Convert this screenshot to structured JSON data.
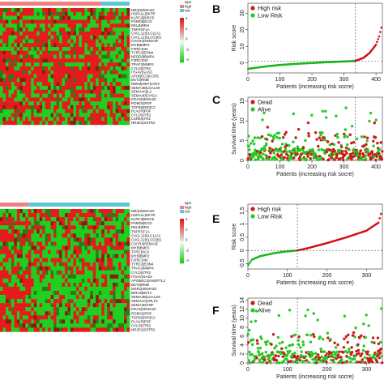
{
  "colors": {
    "high_expr": "#e41a1c",
    "low_expr": "#1fcf1f",
    "mid_expr": "#111111",
    "high_group": "#f08080",
    "low_group": "#5bc8d8",
    "dead": "#cc1a1a",
    "alive": "#22cc22",
    "red_line": "#d01010",
    "green_line": "#17b817"
  },
  "heatmap_top": {
    "genes": [
      "MR1|SEMA4G",
      "HSPA1L|DKTR",
      "KLRC2|BIRC5",
      "PSMD5|ECD",
      "RELB|RRH",
      "TNFRSF1A",
      "CXCL12|SLC11A1",
      "CXCL12|SLCO2B1",
      "CXCR4|SEMA3F",
      "MYB|BMP2",
      "F2R|CD40",
      "TYRC3|EDN4",
      "NEDD8|BMP4",
      "F2R|CD40",
      "TRAF2|MMP4",
      "CYLD|STR2",
      "ITGAV|GAS3",
      "APOBEC3|CCR5",
      "BST2|RMB",
      "RBM4|NM7|CSF2",
      "SEMA4B|LGALS9",
      "SEMA4A|IL2",
      "SEMA4D|CHGA",
      "KRAS|SEMA3C",
      "ROBO2|PDF",
      "TGFB2|NR3C2",
      "PLAUR|PDF",
      "CYLD|STR2",
      "LGR5|STR2",
      "NR2E1|SSTR2"
    ],
    "legend_title": "type",
    "legend_items": [
      "type",
      "high",
      "low"
    ],
    "scale_ticks": [
      "4",
      "2",
      "0",
      "-2",
      "-4"
    ]
  },
  "heatmap_bottom": {
    "genes": [
      "MR1|SEMA4G",
      "HSPA1L|DKTR",
      "KLRC2|BIRC5",
      "PSMD5|ECD",
      "RELB|RRH",
      "TNFRSF1A",
      "CXCL12|SLC11A1",
      "CXCL12|SLCO2B1",
      "CXCR4|SEMA3F",
      "MYB|BMP2",
      "TFRC|DCX",
      "MYB|BMP2",
      "F2R|CD40",
      "TYRC3|EDN4",
      "TRAF2|MMP4",
      "CYLD|STR2",
      "ITGAV|GAS3",
      "APOBEC3|ANGPTL2",
      "BST2|RMB",
      "MSR1|SEMA3G",
      "BIRC5|BST2",
      "SEMA4B|LGALS9",
      "SEMA4A|CRLF2",
      "SEMA4D|TNF",
      "KRAS|SEMA3C",
      "ROBO2|PDF",
      "TGFB2|NR3C2",
      "PLAUR|PDF",
      "CYLD|STR2",
      "NR2E1|SSTR2"
    ],
    "legend_title": "type",
    "legend_items": [
      "type",
      "high",
      "low"
    ],
    "scale_ticks": [
      "4",
      "2",
      "0",
      "-2",
      "-4"
    ]
  },
  "panels": {
    "B": "B",
    "C": "C",
    "E": "E",
    "F": "F"
  },
  "chart_data": [
    {
      "type": "line",
      "panel": "B",
      "ylabel": "Risk score",
      "xlabel": "Patients (increasing risk socre)",
      "legend": [
        "High risk",
        "Low Risk"
      ],
      "legend_position": "top-left",
      "xticks": [
        0,
        100,
        200,
        300,
        400
      ],
      "yticks": [
        0,
        10,
        20,
        30
      ],
      "xlim": [
        0,
        420
      ],
      "ylim": [
        -6,
        36
      ],
      "cutoff_index": 335,
      "cutoff_value": 1.2,
      "series": [
        {
          "name": "Low Risk",
          "x": [
            1,
            20,
            60,
            100,
            150,
            200,
            250,
            300,
            335
          ],
          "y": [
            -3.5,
            -3.0,
            -2.0,
            -1.2,
            -0.5,
            0.0,
            0.5,
            0.9,
            1.2
          ]
        },
        {
          "name": "High risk",
          "x": [
            335,
            360,
            380,
            400,
            410,
            420
          ],
          "y": [
            1.2,
            3.0,
            6.0,
            11.0,
            16.0,
            24.0
          ]
        }
      ]
    },
    {
      "type": "scatter",
      "panel": "C",
      "ylabel": "Survival time (years)",
      "xlabel": "Patients (increasing risk socre)",
      "legend": [
        "Dead",
        "Alive"
      ],
      "legend_position": "top-left",
      "xticks": [
        0,
        100,
        200,
        300,
        400
      ],
      "yticks": [
        0,
        5,
        10,
        15
      ],
      "xlim": [
        0,
        420
      ],
      "ylim": [
        0,
        16
      ],
      "cutoff_index": 335,
      "n_points": 420
    },
    {
      "type": "line",
      "panel": "E",
      "ylabel": "Risk score",
      "xlabel": "Patients (increasing risk socre)",
      "legend": [
        "High risk",
        "Low Risk"
      ],
      "legend_position": "top-left",
      "xticks": [
        0,
        100,
        200,
        300
      ],
      "yticks": [
        -0.5,
        0.0,
        0.5,
        1.0,
        1.5
      ],
      "xlim": [
        0,
        340
      ],
      "ylim": [
        -0.7,
        1.75
      ],
      "cutoff_index": 125,
      "cutoff_value": 0.0,
      "series": [
        {
          "name": "Low Risk",
          "x": [
            1,
            10,
            30,
            60,
            90,
            125
          ],
          "y": [
            -0.55,
            -0.35,
            -0.22,
            -0.12,
            -0.05,
            0.0
          ]
        },
        {
          "name": "High risk",
          "x": [
            125,
            150,
            200,
            250,
            300,
            330,
            340
          ],
          "y": [
            0.0,
            0.08,
            0.28,
            0.5,
            0.75,
            1.05,
            1.55
          ]
        }
      ]
    },
    {
      "type": "scatter",
      "panel": "F",
      "ylabel": "Survival time (years)",
      "xlabel": "Patients (increasing risk socre)",
      "legend": [
        "Dead",
        "Alive"
      ],
      "legend_position": "top-left",
      "xticks": [
        0,
        100,
        200,
        300
      ],
      "yticks": [
        0,
        2,
        4,
        6,
        8,
        10,
        12,
        14
      ],
      "xlim": [
        0,
        340
      ],
      "ylim": [
        0,
        14.5
      ],
      "cutoff_index": 125,
      "n_points": 340
    }
  ]
}
